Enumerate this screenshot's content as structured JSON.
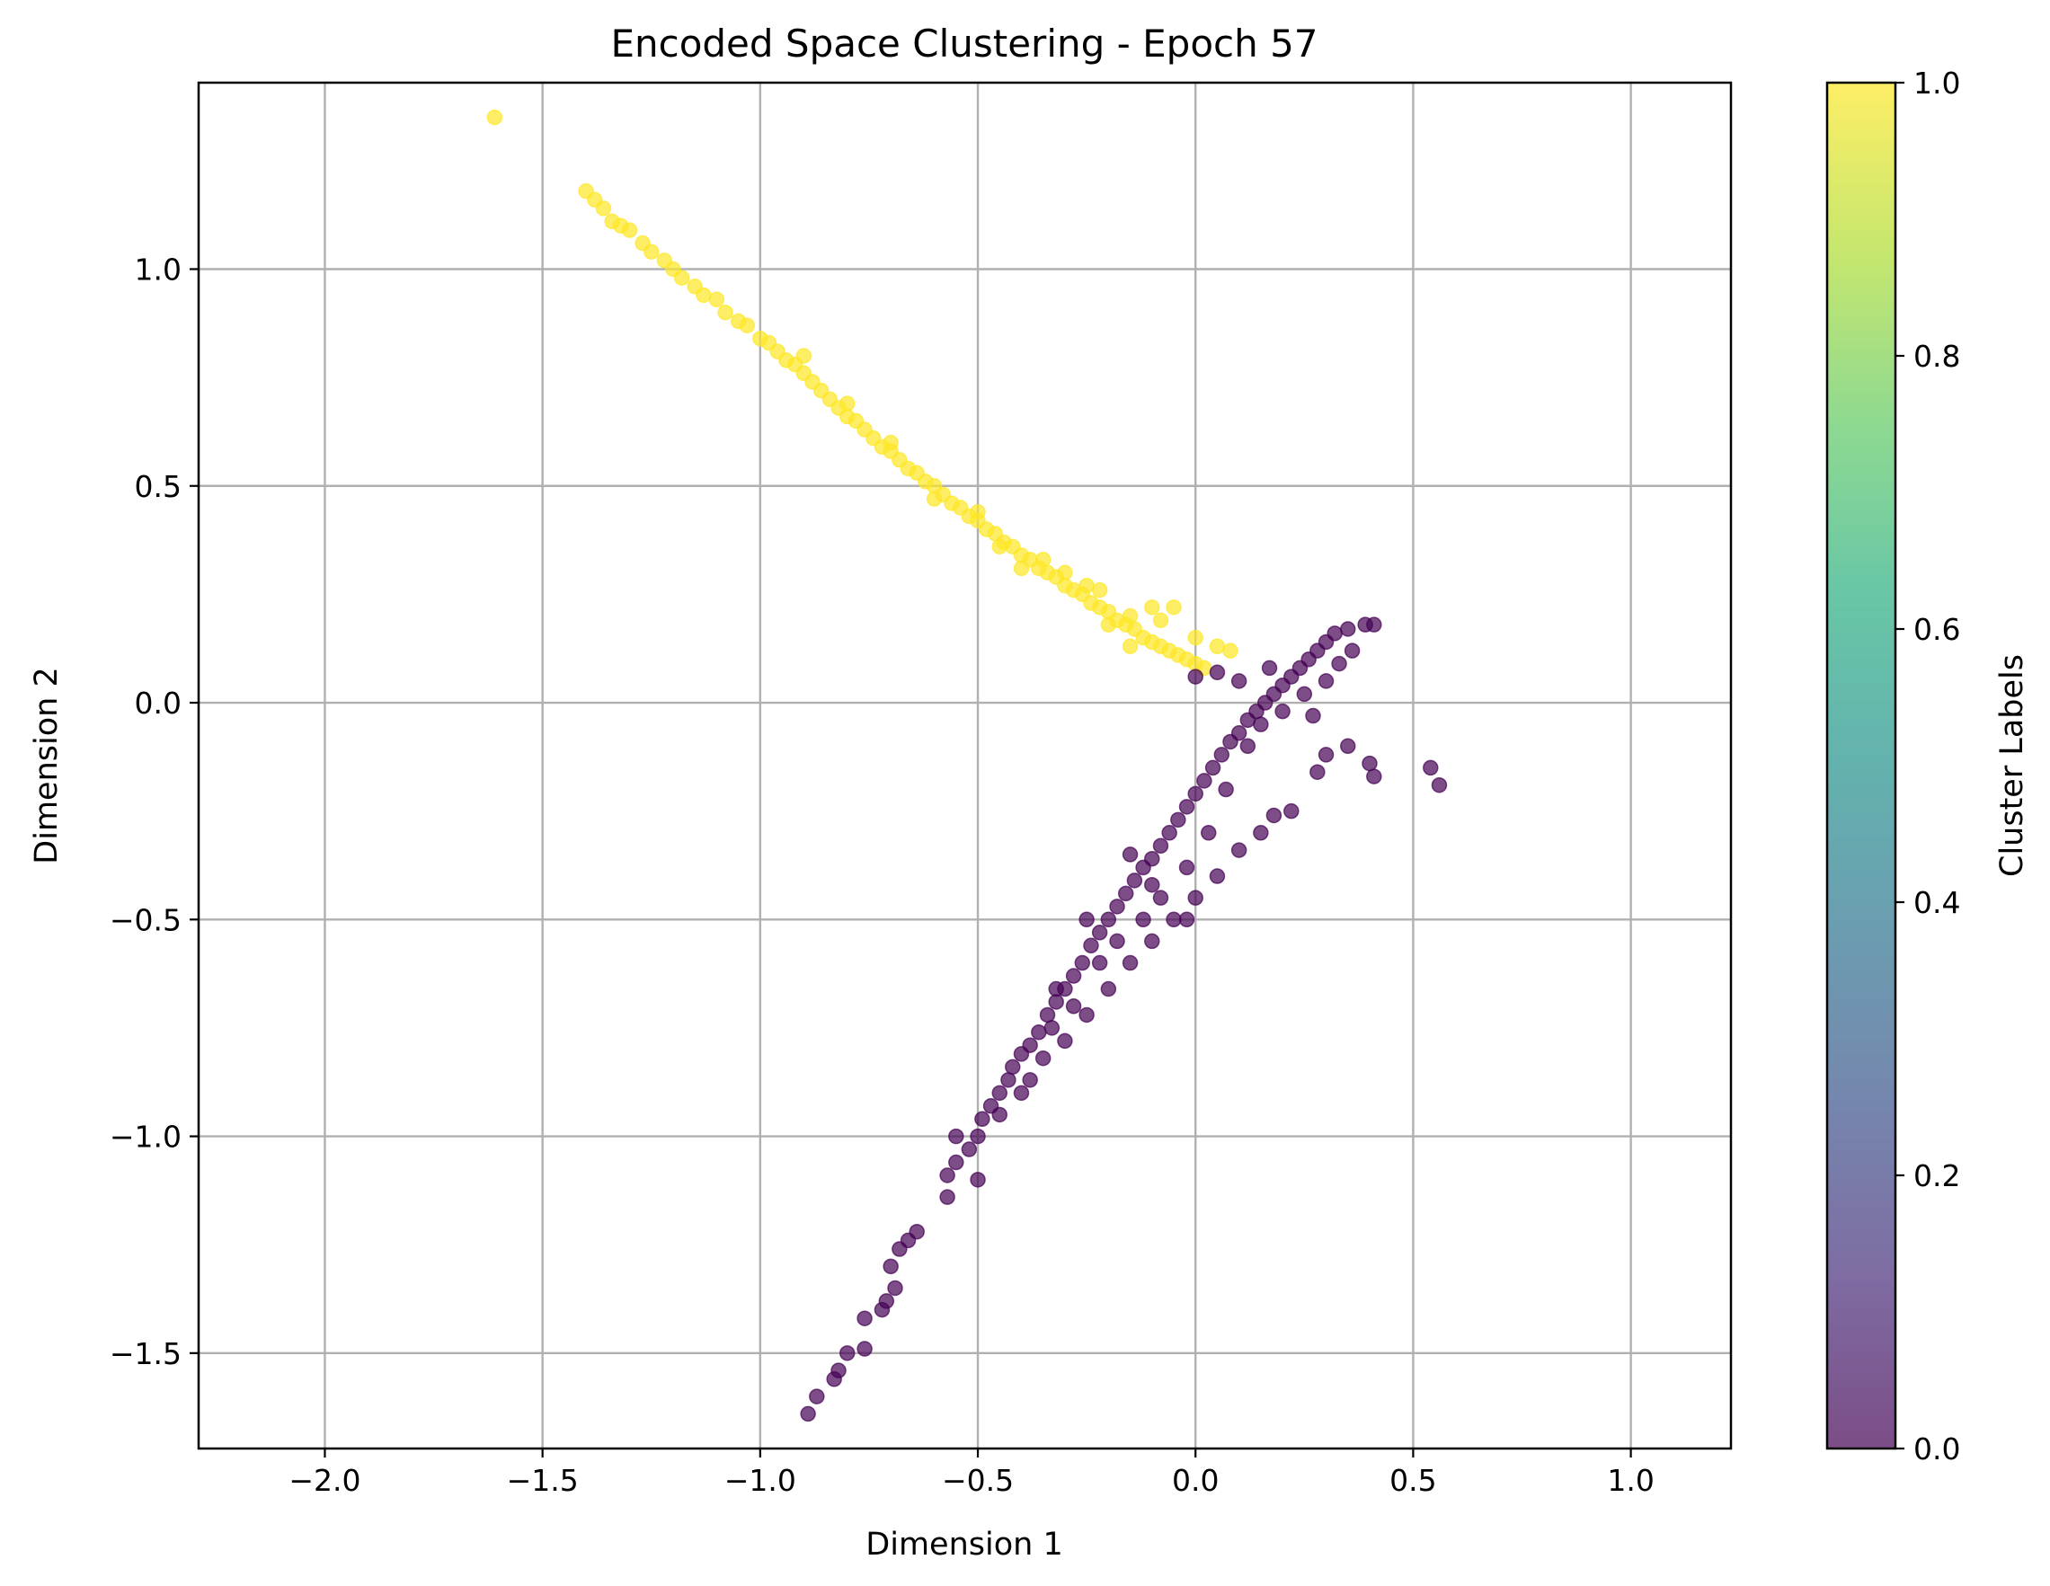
{
  "chart_data": {
    "type": "scatter",
    "title": "Encoded Space Clustering - Epoch 57",
    "xlabel": "Dimension 1",
    "ylabel": "Dimension 2",
    "xlim": [
      -2.29,
      1.23
    ],
    "ylim": [
      -1.72,
      1.43
    ],
    "xticks": [
      {
        "value": -2.0,
        "label": "−2.0"
      },
      {
        "value": -1.5,
        "label": "−1.5"
      },
      {
        "value": -1.0,
        "label": "−1.0"
      },
      {
        "value": -0.5,
        "label": "−0.5"
      },
      {
        "value": 0.0,
        "label": "0.0"
      },
      {
        "value": 0.5,
        "label": "0.5"
      },
      {
        "value": 1.0,
        "label": "1.0"
      }
    ],
    "yticks": [
      {
        "value": -1.5,
        "label": "−1.5"
      },
      {
        "value": -1.0,
        "label": "−1.0"
      },
      {
        "value": -0.5,
        "label": "−0.5"
      },
      {
        "value": 0.0,
        "label": "0.0"
      },
      {
        "value": 0.5,
        "label": "0.5"
      },
      {
        "value": 1.0,
        "label": "1.0"
      }
    ],
    "grid": true,
    "colormap": "viridis",
    "marker_alpha": 0.7,
    "colorbar": {
      "label": "Cluster Labels",
      "range": [
        0.0,
        1.0
      ],
      "ticks": [
        {
          "value": 0.0,
          "label": "0.0"
        },
        {
          "value": 0.2,
          "label": "0.2"
        },
        {
          "value": 0.4,
          "label": "0.4"
        },
        {
          "value": 0.6,
          "label": "0.6"
        },
        {
          "value": 0.8,
          "label": "0.8"
        },
        {
          "value": 1.0,
          "label": "1.0"
        }
      ]
    },
    "series": [
      {
        "label_value": 1.0,
        "color": "#fde725",
        "points": [
          [
            -1.61,
            1.35
          ],
          [
            -1.4,
            1.18
          ],
          [
            -1.38,
            1.16
          ],
          [
            -1.36,
            1.14
          ],
          [
            -1.34,
            1.11
          ],
          [
            -1.32,
            1.1
          ],
          [
            -1.3,
            1.09
          ],
          [
            -1.27,
            1.06
          ],
          [
            -1.25,
            1.04
          ],
          [
            -1.22,
            1.02
          ],
          [
            -1.2,
            1.0
          ],
          [
            -1.18,
            0.98
          ],
          [
            -1.15,
            0.96
          ],
          [
            -1.13,
            0.94
          ],
          [
            -1.1,
            0.93
          ],
          [
            -1.08,
            0.9
          ],
          [
            -1.05,
            0.88
          ],
          [
            -1.03,
            0.87
          ],
          [
            -1.0,
            0.84
          ],
          [
            -0.98,
            0.83
          ],
          [
            -0.96,
            0.81
          ],
          [
            -0.94,
            0.79
          ],
          [
            -0.92,
            0.78
          ],
          [
            -0.9,
            0.76
          ],
          [
            -0.88,
            0.74
          ],
          [
            -0.86,
            0.72
          ],
          [
            -0.84,
            0.7
          ],
          [
            -0.82,
            0.68
          ],
          [
            -0.8,
            0.66
          ],
          [
            -0.78,
            0.65
          ],
          [
            -0.76,
            0.63
          ],
          [
            -0.74,
            0.61
          ],
          [
            -0.72,
            0.59
          ],
          [
            -0.7,
            0.58
          ],
          [
            -0.68,
            0.56
          ],
          [
            -0.66,
            0.54
          ],
          [
            -0.64,
            0.53
          ],
          [
            -0.62,
            0.51
          ],
          [
            -0.6,
            0.5
          ],
          [
            -0.58,
            0.48
          ],
          [
            -0.56,
            0.46
          ],
          [
            -0.54,
            0.45
          ],
          [
            -0.52,
            0.43
          ],
          [
            -0.5,
            0.42
          ],
          [
            -0.48,
            0.4
          ],
          [
            -0.46,
            0.39
          ],
          [
            -0.44,
            0.37
          ],
          [
            -0.42,
            0.36
          ],
          [
            -0.4,
            0.34
          ],
          [
            -0.38,
            0.33
          ],
          [
            -0.36,
            0.31
          ],
          [
            -0.34,
            0.3
          ],
          [
            -0.32,
            0.29
          ],
          [
            -0.3,
            0.27
          ],
          [
            -0.28,
            0.26
          ],
          [
            -0.26,
            0.25
          ],
          [
            -0.24,
            0.23
          ],
          [
            -0.22,
            0.22
          ],
          [
            -0.2,
            0.21
          ],
          [
            -0.18,
            0.19
          ],
          [
            -0.16,
            0.18
          ],
          [
            -0.14,
            0.17
          ],
          [
            -0.12,
            0.15
          ],
          [
            -0.1,
            0.14
          ],
          [
            -0.08,
            0.13
          ],
          [
            -0.06,
            0.12
          ],
          [
            -0.04,
            0.11
          ],
          [
            -0.02,
            0.1
          ],
          [
            0.0,
            0.09
          ],
          [
            0.02,
            0.08
          ],
          [
            -0.9,
            0.8
          ],
          [
            -0.8,
            0.69
          ],
          [
            -0.7,
            0.6
          ],
          [
            -0.6,
            0.47
          ],
          [
            -0.5,
            0.44
          ],
          [
            -0.45,
            0.36
          ],
          [
            -0.35,
            0.33
          ],
          [
            -0.3,
            0.3
          ],
          [
            -0.25,
            0.27
          ],
          [
            -0.2,
            0.18
          ],
          [
            -0.15,
            0.2
          ],
          [
            -0.1,
            0.22
          ],
          [
            -0.05,
            0.22
          ],
          [
            0.0,
            0.15
          ],
          [
            0.05,
            0.13
          ],
          [
            0.08,
            0.12
          ],
          [
            -0.15,
            0.13
          ],
          [
            -0.08,
            0.19
          ],
          [
            -0.22,
            0.26
          ],
          [
            -0.4,
            0.31
          ]
        ]
      },
      {
        "label_value": 0.0,
        "color": "#440154",
        "points": [
          [
            -0.89,
            -1.64
          ],
          [
            -0.87,
            -1.6
          ],
          [
            -0.83,
            -1.56
          ],
          [
            -0.82,
            -1.54
          ],
          [
            -0.8,
            -1.5
          ],
          [
            -0.76,
            -1.49
          ],
          [
            -0.76,
            -1.42
          ],
          [
            -0.72,
            -1.4
          ],
          [
            -0.71,
            -1.38
          ],
          [
            -0.69,
            -1.35
          ],
          [
            -0.7,
            -1.3
          ],
          [
            -0.68,
            -1.26
          ],
          [
            -0.66,
            -1.24
          ],
          [
            -0.64,
            -1.22
          ],
          [
            -0.57,
            -1.14
          ],
          [
            -0.57,
            -1.09
          ],
          [
            -0.55,
            -1.06
          ],
          [
            -0.52,
            -1.03
          ],
          [
            -0.5,
            -1.0
          ],
          [
            -0.49,
            -0.96
          ],
          [
            -0.47,
            -0.93
          ],
          [
            -0.45,
            -0.9
          ],
          [
            -0.43,
            -0.87
          ],
          [
            -0.42,
            -0.84
          ],
          [
            -0.4,
            -0.81
          ],
          [
            -0.38,
            -0.79
          ],
          [
            -0.36,
            -0.76
          ],
          [
            -0.34,
            -0.72
          ],
          [
            -0.32,
            -0.69
          ],
          [
            -0.3,
            -0.66
          ],
          [
            -0.28,
            -0.63
          ],
          [
            -0.26,
            -0.6
          ],
          [
            -0.24,
            -0.56
          ],
          [
            -0.22,
            -0.53
          ],
          [
            -0.2,
            -0.5
          ],
          [
            -0.18,
            -0.47
          ],
          [
            -0.16,
            -0.44
          ],
          [
            -0.14,
            -0.41
          ],
          [
            -0.12,
            -0.38
          ],
          [
            -0.1,
            -0.36
          ],
          [
            -0.08,
            -0.33
          ],
          [
            -0.06,
            -0.3
          ],
          [
            -0.04,
            -0.27
          ],
          [
            -0.02,
            -0.24
          ],
          [
            0.0,
            -0.21
          ],
          [
            0.02,
            -0.18
          ],
          [
            0.04,
            -0.15
          ],
          [
            0.06,
            -0.12
          ],
          [
            0.08,
            -0.09
          ],
          [
            0.1,
            -0.07
          ],
          [
            0.12,
            -0.04
          ],
          [
            0.14,
            -0.02
          ],
          [
            0.16,
            0.0
          ],
          [
            0.18,
            0.02
          ],
          [
            0.2,
            0.04
          ],
          [
            0.22,
            0.06
          ],
          [
            0.24,
            0.08
          ],
          [
            0.26,
            0.1
          ],
          [
            0.28,
            0.12
          ],
          [
            0.3,
            0.14
          ],
          [
            0.32,
            0.16
          ],
          [
            0.35,
            0.17
          ],
          [
            0.39,
            0.18
          ],
          [
            0.41,
            0.18
          ],
          [
            0.4,
            -0.14
          ],
          [
            0.41,
            -0.17
          ],
          [
            0.54,
            -0.15
          ],
          [
            0.56,
            -0.19
          ],
          [
            0.35,
            -0.1
          ],
          [
            0.3,
            -0.12
          ],
          [
            0.28,
            -0.16
          ],
          [
            0.22,
            -0.25
          ],
          [
            0.18,
            -0.26
          ],
          [
            0.15,
            -0.3
          ],
          [
            0.1,
            -0.34
          ],
          [
            0.05,
            -0.4
          ],
          [
            0.0,
            -0.45
          ],
          [
            -0.05,
            -0.5
          ],
          [
            -0.1,
            -0.55
          ],
          [
            -0.15,
            -0.6
          ],
          [
            -0.2,
            -0.66
          ],
          [
            -0.25,
            -0.72
          ],
          [
            -0.3,
            -0.78
          ],
          [
            -0.35,
            -0.82
          ],
          [
            -0.4,
            -0.9
          ],
          [
            -0.5,
            -1.1
          ],
          [
            -0.55,
            -1.0
          ],
          [
            -0.45,
            -0.95
          ],
          [
            -0.38,
            -0.87
          ],
          [
            -0.33,
            -0.75
          ],
          [
            -0.28,
            -0.7
          ],
          [
            -0.22,
            -0.6
          ],
          [
            -0.18,
            -0.55
          ],
          [
            -0.12,
            -0.5
          ],
          [
            -0.08,
            -0.45
          ],
          [
            -0.02,
            -0.38
          ],
          [
            0.03,
            -0.3
          ],
          [
            0.07,
            -0.2
          ],
          [
            0.12,
            -0.1
          ],
          [
            0.15,
            -0.05
          ],
          [
            0.2,
            -0.02
          ],
          [
            0.25,
            0.02
          ],
          [
            0.3,
            0.05
          ],
          [
            0.33,
            0.09
          ],
          [
            0.36,
            0.12
          ],
          [
            0.05,
            0.07
          ],
          [
            0.1,
            0.05
          ],
          [
            0.17,
            0.08
          ],
          [
            0.0,
            0.06
          ],
          [
            0.27,
            -0.03
          ],
          [
            -0.02,
            -0.5
          ],
          [
            -0.1,
            -0.42
          ],
          [
            -0.25,
            -0.5
          ],
          [
            -0.32,
            -0.66
          ],
          [
            -0.15,
            -0.35
          ]
        ]
      }
    ]
  }
}
